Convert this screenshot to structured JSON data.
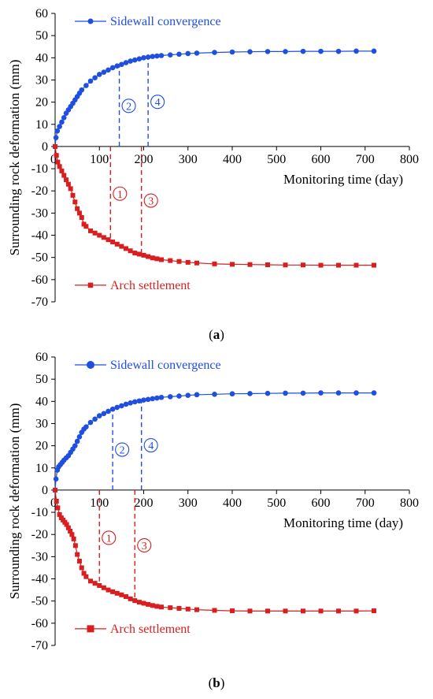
{
  "chart_data": [
    {
      "type": "line",
      "panel_label": "a",
      "xlabel": "Monitoring time (day)",
      "ylabel": "Surrounding rock deformation (mm)",
      "xlim": [
        0,
        800
      ],
      "ylim": [
        -70,
        60
      ],
      "x_ticks": [
        "0",
        "100",
        "200",
        "300",
        "400",
        "500",
        "600",
        "700",
        "800"
      ],
      "y_ticks": [
        "60",
        "50",
        "40",
        "30",
        "20",
        "10",
        "0",
        "-10",
        "-20",
        "-30",
        "-40",
        "-50",
        "-60",
        "-70"
      ],
      "grid": false,
      "legend": "inside-top-left and inside-bottom-left",
      "series": [
        {
          "name": "Sidewall convergence",
          "color": "#1f4fe0",
          "marker": "circle",
          "points": [
            [
              0,
              0
            ],
            [
              2,
              4
            ],
            [
              5,
              7
            ],
            [
              10,
              9
            ],
            [
              15,
              11
            ],
            [
              20,
              13
            ],
            [
              25,
              15
            ],
            [
              30,
              16.5
            ],
            [
              35,
              18
            ],
            [
              40,
              19.5
            ],
            [
              45,
              21
            ],
            [
              50,
              22.5
            ],
            [
              55,
              24
            ],
            [
              60,
              25.5
            ],
            [
              70,
              27.5
            ],
            [
              80,
              29.5
            ],
            [
              90,
              31
            ],
            [
              100,
              32.5
            ],
            [
              110,
              33.5
            ],
            [
              120,
              34.5
            ],
            [
              130,
              35.5
            ],
            [
              140,
              36.3
            ],
            [
              150,
              37
            ],
            [
              160,
              37.8
            ],
            [
              170,
              38.5
            ],
            [
              180,
              39
            ],
            [
              190,
              39.5
            ],
            [
              200,
              40
            ],
            [
              210,
              40.3
            ],
            [
              220,
              40.6
            ],
            [
              230,
              40.8
            ],
            [
              240,
              41
            ],
            [
              260,
              41.3
            ],
            [
              280,
              41.6
            ],
            [
              300,
              41.9
            ],
            [
              320,
              42.1
            ],
            [
              360,
              42.4
            ],
            [
              400,
              42.6
            ],
            [
              440,
              42.7
            ],
            [
              480,
              42.8
            ],
            [
              520,
              42.8
            ],
            [
              560,
              42.9
            ],
            [
              600,
              42.9
            ],
            [
              640,
              42.9
            ],
            [
              680,
              43
            ],
            [
              720,
              43
            ]
          ]
        },
        {
          "name": "Arch settlement",
          "color": "#d81e1e",
          "marker": "square",
          "points": [
            [
              0,
              0
            ],
            [
              3,
              -4
            ],
            [
              6,
              -7
            ],
            [
              10,
              -9
            ],
            [
              15,
              -11
            ],
            [
              20,
              -13
            ],
            [
              25,
              -15
            ],
            [
              30,
              -17
            ],
            [
              35,
              -19
            ],
            [
              40,
              -22
            ],
            [
              45,
              -25
            ],
            [
              50,
              -28
            ],
            [
              55,
              -30
            ],
            [
              60,
              -32
            ],
            [
              65,
              -35
            ],
            [
              70,
              -36
            ],
            [
              80,
              -38
            ],
            [
              90,
              -39
            ],
            [
              100,
              -40
            ],
            [
              110,
              -41
            ],
            [
              120,
              -42
            ],
            [
              130,
              -43
            ],
            [
              140,
              -44
            ],
            [
              150,
              -45
            ],
            [
              160,
              -46
            ],
            [
              170,
              -47
            ],
            [
              180,
              -48
            ],
            [
              190,
              -48.5
            ],
            [
              200,
              -49
            ],
            [
              210,
              -49.6
            ],
            [
              220,
              -50.2
            ],
            [
              230,
              -50.6
            ],
            [
              240,
              -51
            ],
            [
              260,
              -51.4
            ],
            [
              280,
              -51.8
            ],
            [
              300,
              -52.2
            ],
            [
              320,
              -52.5
            ],
            [
              360,
              -52.9
            ],
            [
              400,
              -53.1
            ],
            [
              440,
              -53.2
            ],
            [
              480,
              -53.3
            ],
            [
              520,
              -53.4
            ],
            [
              560,
              -53.4
            ],
            [
              600,
              -53.5
            ],
            [
              640,
              -53.5
            ],
            [
              680,
              -53.5
            ],
            [
              720,
              -53.5
            ]
          ]
        }
      ],
      "markers": [
        {
          "label": "1",
          "x": 125,
          "color": "#d81e1e",
          "side": "bottom"
        },
        {
          "label": "2",
          "x": 145,
          "color": "#1f4fe0",
          "side": "top"
        },
        {
          "label": "3",
          "x": 195,
          "color": "#d81e1e",
          "side": "bottom"
        },
        {
          "label": "4",
          "x": 210,
          "color": "#1f4fe0",
          "side": "top"
        }
      ]
    },
    {
      "type": "line",
      "panel_label": "b",
      "xlabel": "Monitoring time (day)",
      "ylabel": "Surrounding rock deformation (mm)",
      "xlim": [
        0,
        800
      ],
      "ylim": [
        -70,
        60
      ],
      "x_ticks": [
        "0",
        "100",
        "200",
        "300",
        "400",
        "500",
        "600",
        "700",
        "800"
      ],
      "y_ticks": [
        "60",
        "50",
        "40",
        "30",
        "20",
        "10",
        "0",
        "-10",
        "-20",
        "-30",
        "-40",
        "-50",
        "-60",
        "-70"
      ],
      "grid": false,
      "legend": "inside-top-left and inside-bottom-left",
      "series": [
        {
          "name": "Sidewall convergence",
          "color": "#1f4fe0",
          "marker": "circle",
          "points": [
            [
              0,
              0
            ],
            [
              2,
              5
            ],
            [
              5,
              9
            ],
            [
              8,
              10.5
            ],
            [
              12,
              11.5
            ],
            [
              16,
              12.5
            ],
            [
              20,
              13.5
            ],
            [
              25,
              14.5
            ],
            [
              30,
              15.5
            ],
            [
              35,
              17
            ],
            [
              40,
              18.5
            ],
            [
              45,
              20
            ],
            [
              50,
              22
            ],
            [
              55,
              24
            ],
            [
              60,
              26
            ],
            [
              65,
              27.5
            ],
            [
              70,
              28.5
            ],
            [
              80,
              30.5
            ],
            [
              90,
              32
            ],
            [
              100,
              33.5
            ],
            [
              110,
              34.5
            ],
            [
              120,
              35.5
            ],
            [
              130,
              36.5
            ],
            [
              140,
              37.3
            ],
            [
              150,
              38
            ],
            [
              160,
              38.7
            ],
            [
              170,
              39.3
            ],
            [
              180,
              39.8
            ],
            [
              190,
              40.2
            ],
            [
              200,
              40.6
            ],
            [
              210,
              40.9
            ],
            [
              220,
              41.2
            ],
            [
              230,
              41.5
            ],
            [
              240,
              41.8
            ],
            [
              260,
              42.1
            ],
            [
              280,
              42.4
            ],
            [
              300,
              42.7
            ],
            [
              320,
              43
            ],
            [
              360,
              43.2
            ],
            [
              400,
              43.4
            ],
            [
              440,
              43.5
            ],
            [
              480,
              43.6
            ],
            [
              520,
              43.7
            ],
            [
              560,
              43.7
            ],
            [
              600,
              43.8
            ],
            [
              640,
              43.8
            ],
            [
              680,
              43.8
            ],
            [
              720,
              43.8
            ]
          ]
        },
        {
          "name": "Arch settlement",
          "color": "#d81e1e",
          "marker": "square",
          "points": [
            [
              0,
              0
            ],
            [
              3,
              -5
            ],
            [
              6,
              -8
            ],
            [
              10,
              -11
            ],
            [
              14,
              -12.5
            ],
            [
              18,
              -13.5
            ],
            [
              22,
              -14.5
            ],
            [
              26,
              -15.5
            ],
            [
              30,
              -17
            ],
            [
              34,
              -18.5
            ],
            [
              38,
              -20
            ],
            [
              42,
              -22
            ],
            [
              46,
              -25
            ],
            [
              50,
              -29
            ],
            [
              55,
              -32
            ],
            [
              60,
              -35
            ],
            [
              65,
              -37.5
            ],
            [
              70,
              -39
            ],
            [
              80,
              -41
            ],
            [
              90,
              -42
            ],
            [
              100,
              -43
            ],
            [
              110,
              -44
            ],
            [
              120,
              -45
            ],
            [
              130,
              -45.8
            ],
            [
              140,
              -46.5
            ],
            [
              150,
              -47.2
            ],
            [
              160,
              -48
            ],
            [
              170,
              -49
            ],
            [
              180,
              -49.8
            ],
            [
              190,
              -50.5
            ],
            [
              200,
              -51
            ],
            [
              210,
              -51.5
            ],
            [
              220,
              -52
            ],
            [
              230,
              -52.4
            ],
            [
              240,
              -52.7
            ],
            [
              260,
              -53
            ],
            [
              280,
              -53.3
            ],
            [
              300,
              -53.6
            ],
            [
              320,
              -53.9
            ],
            [
              360,
              -54.2
            ],
            [
              400,
              -54.4
            ],
            [
              440,
              -54.5
            ],
            [
              480,
              -54.5
            ],
            [
              520,
              -54.5
            ],
            [
              560,
              -54.5
            ],
            [
              600,
              -54.5
            ],
            [
              640,
              -54.5
            ],
            [
              680,
              -54.5
            ],
            [
              720,
              -54.4
            ]
          ]
        }
      ],
      "markers": [
        {
          "label": "1",
          "x": 100,
          "color": "#d81e1e",
          "side": "bottom"
        },
        {
          "label": "2",
          "x": 130,
          "color": "#1f4fe0",
          "side": "top"
        },
        {
          "label": "3",
          "x": 180,
          "color": "#d81e1e",
          "side": "bottom"
        },
        {
          "label": "4",
          "x": 195,
          "color": "#1f4fe0",
          "side": "top"
        }
      ]
    }
  ]
}
